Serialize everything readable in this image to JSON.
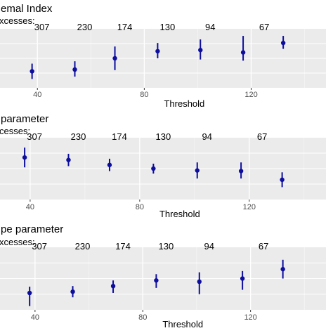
{
  "chart_data": [
    {
      "type": "scatter",
      "title": "emal Index",
      "top_axis_label": "xcesses:",
      "top_ticks": [
        "307",
        "230",
        "174",
        "130",
        "94",
        "67"
      ],
      "xlabel": "Threshold",
      "x_ticks": [
        "40",
        "80",
        "120"
      ],
      "xlim": [
        26,
        148
      ],
      "ylim": [
        0,
        1
      ],
      "point_color": "#0d0d9e",
      "background": "#ebebeb",
      "points": [
        {
          "x": 38,
          "y": 0.28,
          "lo": 0.15,
          "hi": 0.41
        },
        {
          "x": 54,
          "y": 0.31,
          "lo": 0.19,
          "hi": 0.45
        },
        {
          "x": 69,
          "y": 0.5,
          "lo": 0.3,
          "hi": 0.7
        },
        {
          "x": 85,
          "y": 0.62,
          "lo": 0.5,
          "hi": 0.76
        },
        {
          "x": 101,
          "y": 0.64,
          "lo": 0.48,
          "hi": 0.82
        },
        {
          "x": 117,
          "y": 0.6,
          "lo": 0.46,
          "hi": 0.88
        },
        {
          "x": 132,
          "y": 0.76,
          "lo": 0.66,
          "hi": 0.88
        }
      ]
    },
    {
      "type": "scatter",
      "title": "parameter",
      "top_axis_label": "cesses:",
      "top_ticks": [
        "307",
        "230",
        "174",
        "130",
        "94",
        "67"
      ],
      "xlabel": "Threshold",
      "x_ticks": [
        "40",
        "80",
        "120"
      ],
      "xlim": [
        29,
        148
      ],
      "ylim": [
        0,
        1
      ],
      "point_color": "#0d0d9e",
      "background": "#ebebeb",
      "points": [
        {
          "x": 38,
          "y": 0.68,
          "lo": 0.52,
          "hi": 0.84
        },
        {
          "x": 54,
          "y": 0.64,
          "lo": 0.54,
          "hi": 0.74
        },
        {
          "x": 69,
          "y": 0.56,
          "lo": 0.46,
          "hi": 0.66
        },
        {
          "x": 85,
          "y": 0.5,
          "lo": 0.42,
          "hi": 0.58
        },
        {
          "x": 101,
          "y": 0.47,
          "lo": 0.34,
          "hi": 0.6
        },
        {
          "x": 117,
          "y": 0.46,
          "lo": 0.34,
          "hi": 0.6
        },
        {
          "x": 132,
          "y": 0.32,
          "lo": 0.2,
          "hi": 0.44
        }
      ]
    },
    {
      "type": "scatter",
      "title": "pe parameter",
      "top_axis_label": "xcesses:",
      "top_ticks": [
        "307",
        "230",
        "174",
        "130",
        "94",
        "67"
      ],
      "xlabel": "Threshold",
      "x_ticks": [
        "40",
        "80",
        "120"
      ],
      "xlim": [
        27,
        148
      ],
      "ylim": [
        0,
        1
      ],
      "point_color": "#0d0d9e",
      "background": "#ebebeb",
      "points": [
        {
          "x": 38,
          "y": 0.27,
          "lo": 0.06,
          "hi": 0.37
        },
        {
          "x": 54,
          "y": 0.29,
          "lo": 0.2,
          "hi": 0.38
        },
        {
          "x": 69,
          "y": 0.38,
          "lo": 0.27,
          "hi": 0.47
        },
        {
          "x": 85,
          "y": 0.47,
          "lo": 0.35,
          "hi": 0.57
        },
        {
          "x": 101,
          "y": 0.45,
          "lo": 0.25,
          "hi": 0.6
        },
        {
          "x": 117,
          "y": 0.5,
          "lo": 0.32,
          "hi": 0.62
        },
        {
          "x": 132,
          "y": 0.65,
          "lo": 0.5,
          "hi": 0.8
        }
      ]
    }
  ]
}
